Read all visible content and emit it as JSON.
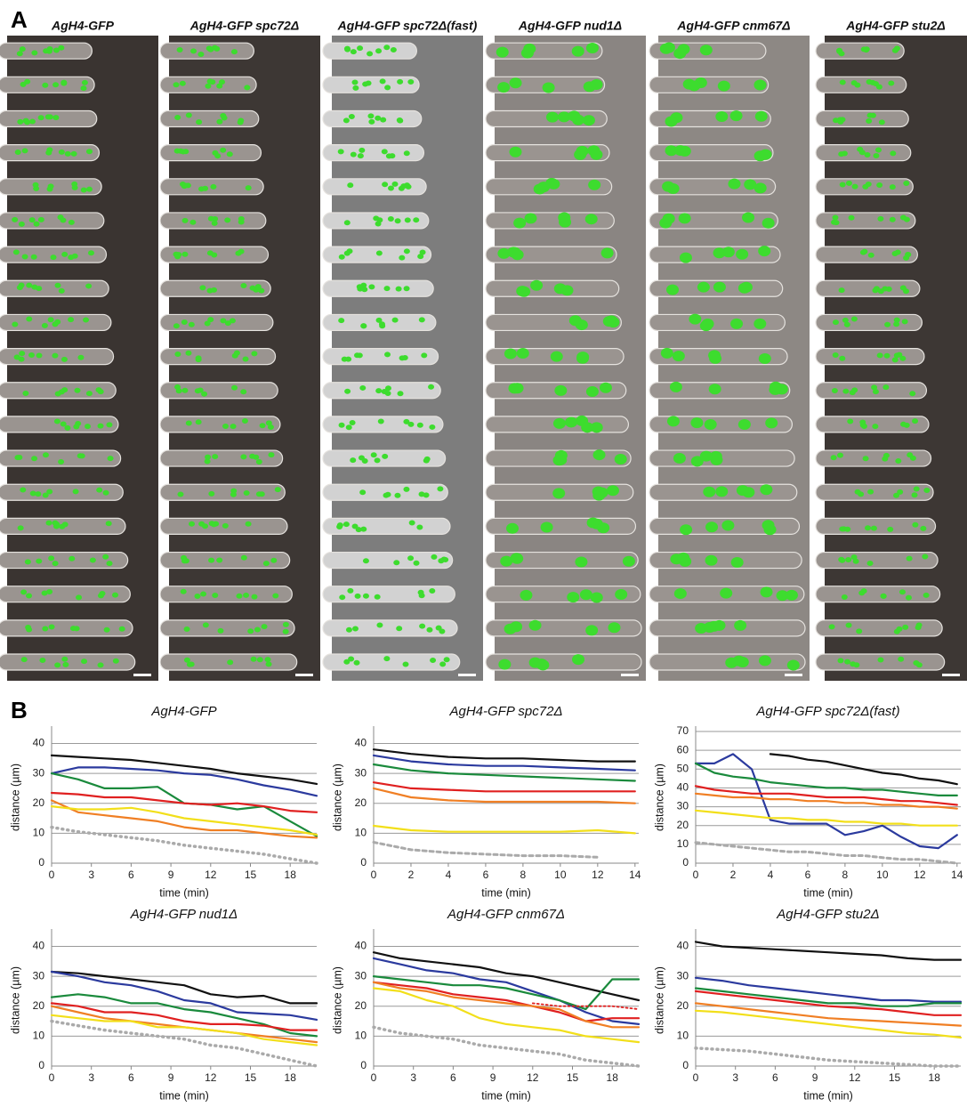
{
  "panel_a": {
    "label": "A",
    "titles": [
      "AgH4-GFP",
      "AgH4-GFP spc72Δ",
      "AgH4-GFP spc72Δ(fast)",
      "AgH4-GFP nud1Δ",
      "AgH4-GFP cnm67Δ",
      "AgH4-GFP stu2Δ"
    ]
  },
  "panel_b": {
    "label": "B"
  },
  "chart_data": [
    {
      "type": "line",
      "title": "AgH4-GFP",
      "xlabel": "time (min)",
      "ylabel": "distance (µm)",
      "xlim": [
        0,
        20
      ],
      "xticks": [
        0,
        3,
        6,
        9,
        12,
        15,
        18
      ],
      "ylim": [
        0,
        44
      ],
      "yticks": [
        0,
        10,
        20,
        30,
        40
      ],
      "grid": true,
      "x": [
        0,
        2,
        4,
        6,
        8,
        10,
        12,
        14,
        16,
        18,
        20
      ],
      "series": [
        {
          "color": "#111111",
          "values": [
            36,
            35.5,
            35,
            34.5,
            33.5,
            32.5,
            31.5,
            30,
            29,
            28,
            26.5
          ]
        },
        {
          "color": "#2b3a9e",
          "values": [
            30,
            32,
            32,
            31.5,
            31,
            30,
            29.5,
            28,
            26,
            24.5,
            22.5
          ]
        },
        {
          "color": "#1a8a3c",
          "values": [
            30,
            28,
            25,
            25,
            25.5,
            20,
            19.5,
            18,
            19,
            14,
            9
          ]
        },
        {
          "color": "#e02020",
          "values": [
            23.5,
            23,
            22,
            22,
            21,
            20,
            19.5,
            20,
            19,
            17.5,
            17
          ]
        },
        {
          "color": "#f07f24",
          "values": [
            21,
            17,
            16,
            15,
            14,
            12,
            11,
            11,
            10,
            9,
            8.5
          ]
        },
        {
          "color": "#f2df1a",
          "values": [
            19,
            18,
            18,
            18.5,
            17,
            15,
            14,
            13,
            12,
            11,
            9.5
          ]
        },
        {
          "color": "#aaaaaa",
          "style": "dotted",
          "values": [
            12,
            10.5,
            9.5,
            8.5,
            7.5,
            6,
            5,
            4,
            3,
            1.5,
            0
          ]
        }
      ]
    },
    {
      "type": "line",
      "title": "AgH4-GFP spc72Δ",
      "xlabel": "time (min)",
      "ylabel": "distance (µm)",
      "xlim": [
        0,
        14.2
      ],
      "xticks": [
        0,
        2,
        4,
        6,
        8,
        10,
        12,
        14
      ],
      "ylim": [
        0,
        44
      ],
      "yticks": [
        0,
        10,
        20,
        30,
        40
      ],
      "grid": true,
      "x": [
        0,
        2,
        4,
        6,
        8,
        10,
        12,
        14
      ],
      "series": [
        {
          "color": "#111111",
          "values": [
            38,
            36.5,
            35.5,
            35,
            35,
            34.5,
            34,
            34
          ]
        },
        {
          "color": "#2b3a9e",
          "values": [
            36,
            34,
            33,
            32.5,
            32.5,
            32,
            31.5,
            31
          ]
        },
        {
          "color": "#1a8a3c",
          "values": [
            33,
            31,
            30,
            29.5,
            29,
            28.5,
            28,
            27.5
          ]
        },
        {
          "color": "#e02020",
          "values": [
            27,
            25,
            24.5,
            24,
            24,
            24,
            24,
            24
          ]
        },
        {
          "color": "#f07f24",
          "values": [
            25,
            22,
            21,
            20.5,
            20.5,
            20.5,
            20.5,
            20
          ]
        },
        {
          "color": "#f2df1a",
          "values": [
            12.5,
            11,
            10.5,
            10.5,
            10.5,
            10.5,
            11,
            10
          ]
        },
        {
          "color": "#aaaaaa",
          "style": "dashed",
          "values": [
            7,
            4.5,
            3.5,
            3,
            2.5,
            2.5,
            2,
            null
          ]
        }
      ]
    },
    {
      "type": "line",
      "title": "AgH4-GFP spc72Δ(fast)",
      "xlabel": "time (min)",
      "ylabel": "distance (µm)",
      "xlim": [
        0,
        14.2
      ],
      "xticks": [
        0,
        2,
        4,
        6,
        8,
        10,
        12,
        14
      ],
      "ylim": [
        0,
        70
      ],
      "yticks": [
        0,
        10,
        20,
        30,
        40,
        50,
        60,
        70
      ],
      "grid": true,
      "x": [
        0,
        1,
        2,
        3,
        4,
        5,
        6,
        7,
        8,
        9,
        10,
        11,
        12,
        13,
        14
      ],
      "series": [
        {
          "color": "#111111",
          "values": [
            null,
            null,
            null,
            null,
            58,
            57,
            55,
            54,
            52,
            50,
            48,
            47,
            45,
            44,
            42
          ]
        },
        {
          "color": "#2b3a9e",
          "values": [
            53,
            53,
            58,
            50,
            23,
            21,
            21,
            21,
            15,
            17,
            20,
            14,
            9,
            8,
            15
          ]
        },
        {
          "color": "#1a8a3c",
          "values": [
            53,
            48,
            46,
            45,
            43,
            42,
            41,
            40,
            40,
            39,
            39,
            38,
            37,
            36,
            36
          ]
        },
        {
          "color": "#e02020",
          "values": [
            41,
            39,
            38,
            37,
            37,
            37,
            36,
            35,
            35,
            35,
            34,
            33,
            33,
            32,
            31
          ]
        },
        {
          "color": "#f07f24",
          "values": [
            37,
            36,
            35,
            35,
            34,
            34,
            33,
            33,
            32,
            32,
            31,
            31,
            30,
            30,
            29
          ]
        },
        {
          "color": "#f2df1a",
          "values": [
            28,
            27,
            26,
            25,
            24,
            24,
            23,
            23,
            22,
            22,
            21,
            21,
            20,
            20,
            20
          ]
        },
        {
          "color": "#aaaaaa",
          "style": "dashed",
          "values": [
            11,
            10,
            9,
            8,
            7,
            6,
            6,
            5,
            4,
            4,
            3,
            2,
            2,
            1,
            0
          ]
        }
      ]
    },
    {
      "type": "line",
      "title": "AgH4-GFP nud1Δ",
      "xlabel": "time (min)",
      "ylabel": "distance (µm)",
      "xlim": [
        0,
        20
      ],
      "xticks": [
        0,
        3,
        6,
        9,
        12,
        15,
        18
      ],
      "ylim": [
        0,
        44
      ],
      "yticks": [
        0,
        10,
        20,
        30,
        40
      ],
      "grid": true,
      "x": [
        0,
        2,
        4,
        6,
        8,
        10,
        12,
        14,
        16,
        18,
        20
      ],
      "series": [
        {
          "color": "#111111",
          "values": [
            31.5,
            31,
            30,
            29,
            28,
            27,
            24,
            23,
            23.5,
            21,
            21
          ]
        },
        {
          "color": "#2b3a9e",
          "values": [
            31.5,
            30,
            28,
            27,
            25,
            22,
            21,
            18,
            17.5,
            17,
            15.5
          ]
        },
        {
          "color": "#1a8a3c",
          "values": [
            23,
            24,
            23,
            21,
            21,
            19,
            18,
            16,
            14,
            11,
            10
          ]
        },
        {
          "color": "#e02020",
          "values": [
            21,
            20,
            18,
            18,
            17,
            15,
            14,
            14,
            13.5,
            12,
            12
          ]
        },
        {
          "color": "#f07f24",
          "values": [
            20,
            18,
            16,
            15,
            14,
            13,
            12,
            11,
            10,
            9,
            8
          ]
        },
        {
          "color": "#f2df1a",
          "values": [
            17,
            16,
            15,
            15,
            13,
            13,
            12,
            11,
            9,
            8,
            7
          ]
        },
        {
          "color": "#aaaaaa",
          "style": "dotted",
          "values": [
            15,
            13.5,
            12,
            11,
            10,
            9,
            7,
            6,
            4,
            2,
            0
          ]
        }
      ]
    },
    {
      "type": "line",
      "title": "AgH4-GFP cnm67Δ",
      "xlabel": "time (min)",
      "ylabel": "distance (µm)",
      "xlim": [
        0,
        20
      ],
      "xticks": [
        0,
        3,
        6,
        9,
        12,
        15,
        18
      ],
      "ylim": [
        0,
        44
      ],
      "yticks": [
        0,
        10,
        20,
        30,
        40
      ],
      "grid": true,
      "x": [
        0,
        2,
        4,
        6,
        8,
        10,
        12,
        14,
        16,
        18,
        20
      ],
      "series": [
        {
          "color": "#111111",
          "values": [
            38,
            36,
            35,
            34,
            33,
            31,
            30,
            28,
            26,
            24,
            22
          ]
        },
        {
          "color": "#2b3a9e",
          "values": [
            36,
            34,
            32,
            31,
            29,
            28,
            25,
            22,
            18,
            15,
            14
          ]
        },
        {
          "color": "#1a8a3c",
          "values": [
            30,
            29,
            28,
            27,
            27,
            26,
            24,
            22,
            19,
            29,
            29
          ]
        },
        {
          "color": "#e02020",
          "values": [
            28,
            27,
            26,
            24,
            23,
            22,
            20,
            18,
            15,
            16,
            16
          ]
        },
        {
          "color": "#f07f24",
          "values": [
            28,
            26,
            25,
            23,
            22,
            21,
            20,
            19,
            15,
            13,
            13
          ]
        },
        {
          "color": "#f2df1a",
          "values": [
            26,
            25,
            22,
            20,
            16,
            14,
            13,
            12,
            10,
            9,
            8
          ]
        },
        {
          "color": "#aaaaaa",
          "style": "dotted",
          "values": [
            13,
            11,
            10,
            9,
            7,
            6,
            5,
            4,
            2,
            1,
            0
          ]
        },
        {
          "color": "#e02020",
          "style": "dotted-thin",
          "values": [
            null,
            null,
            null,
            null,
            null,
            null,
            21,
            20,
            20,
            20,
            19
          ]
        }
      ]
    },
    {
      "type": "line",
      "title": "AgH4-GFP stu2Δ",
      "xlabel": "time (min)",
      "ylabel": "distance (µm)",
      "xlim": [
        0,
        20
      ],
      "xticks": [
        0,
        3,
        6,
        9,
        12,
        15,
        18
      ],
      "ylim": [
        0,
        44
      ],
      "yticks": [
        0,
        10,
        20,
        30,
        40
      ],
      "grid": true,
      "x": [
        0,
        2,
        4,
        6,
        8,
        10,
        12,
        14,
        16,
        18,
        20
      ],
      "series": [
        {
          "color": "#111111",
          "values": [
            41.5,
            40,
            39.5,
            39,
            38.5,
            38,
            37.5,
            37,
            36,
            35.5,
            35.5
          ]
        },
        {
          "color": "#2b3a9e",
          "values": [
            29.5,
            28.5,
            27,
            26,
            25,
            24,
            23,
            22,
            22,
            21.5,
            21.5
          ]
        },
        {
          "color": "#1a8a3c",
          "values": [
            26,
            25,
            24,
            23,
            22,
            21,
            21,
            20,
            20,
            21,
            21
          ]
        },
        {
          "color": "#e02020",
          "values": [
            25,
            24,
            23,
            22,
            21,
            20,
            19.5,
            19,
            18,
            17,
            17
          ]
        },
        {
          "color": "#f07f24",
          "values": [
            21,
            20,
            19,
            18,
            17,
            16,
            15.5,
            15,
            14.5,
            14,
            13.5
          ]
        },
        {
          "color": "#f2df1a",
          "values": [
            18.5,
            18,
            17,
            16,
            15,
            14,
            13,
            12,
            11,
            10.5,
            9.5
          ]
        },
        {
          "color": "#aaaaaa",
          "style": "dotted",
          "values": [
            6,
            5.5,
            5,
            4,
            3,
            2,
            1.5,
            1,
            0.5,
            0,
            0
          ]
        }
      ]
    }
  ]
}
